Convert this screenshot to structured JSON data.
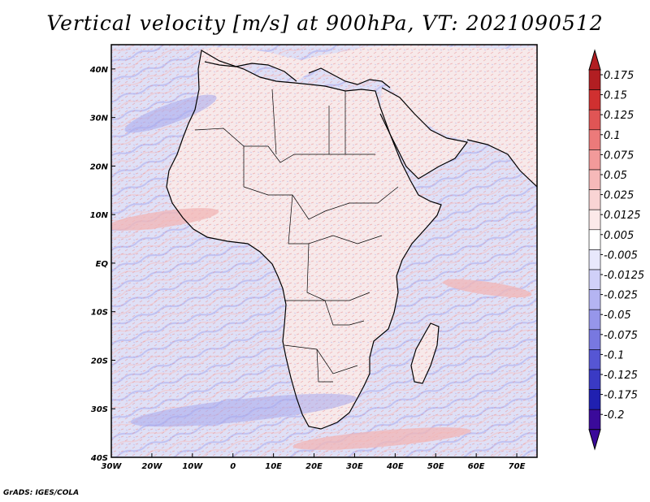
{
  "title": "Vertical velocity [m/s] at 900hPa, VT: 2021090512",
  "credit": "GrADS: IGES/COLA",
  "map": {
    "lat_labels": [
      "40N",
      "30N",
      "20N",
      "10N",
      "EQ",
      "10S",
      "20S",
      "30S",
      "40S"
    ],
    "lon_labels": [
      "30W",
      "20W",
      "10W",
      "0",
      "10E",
      "20E",
      "30E",
      "40E",
      "50E",
      "60E",
      "70E"
    ],
    "lat_range": [
      -40,
      45
    ],
    "lon_range": [
      -30,
      75
    ]
  },
  "colorbar": {
    "labels": [
      "0.175",
      "0.15",
      "0.125",
      "0.1",
      "0.075",
      "0.05",
      "0.025",
      "0.0125",
      "0.005",
      "-0.005",
      "-0.0125",
      "-0.025",
      "-0.05",
      "-0.075",
      "-0.1",
      "-0.125",
      "-0.175",
      "-0.2"
    ],
    "colors": [
      "#b21e22",
      "#d03030",
      "#e05555",
      "#ec7a7a",
      "#f29a9a",
      "#f6b9b9",
      "#f9d4d4",
      "#fce9e9",
      "#ffffff",
      "#e8e8fc",
      "#d0d0f8",
      "#b4b4f2",
      "#9696ea",
      "#7878e0",
      "#5656d4",
      "#3a3ac4",
      "#2020b0",
      "#3a0a9a"
    ],
    "top_arrow_color": "#b21e22",
    "bottom_arrow_color": "#3a0a9a"
  },
  "colors": {
    "ocean": "#dfe0f6",
    "land": "#f7e9ea",
    "desert_red": "#f2b5b5",
    "blue_streak": "#a6a8ec",
    "coast": "#000000"
  }
}
